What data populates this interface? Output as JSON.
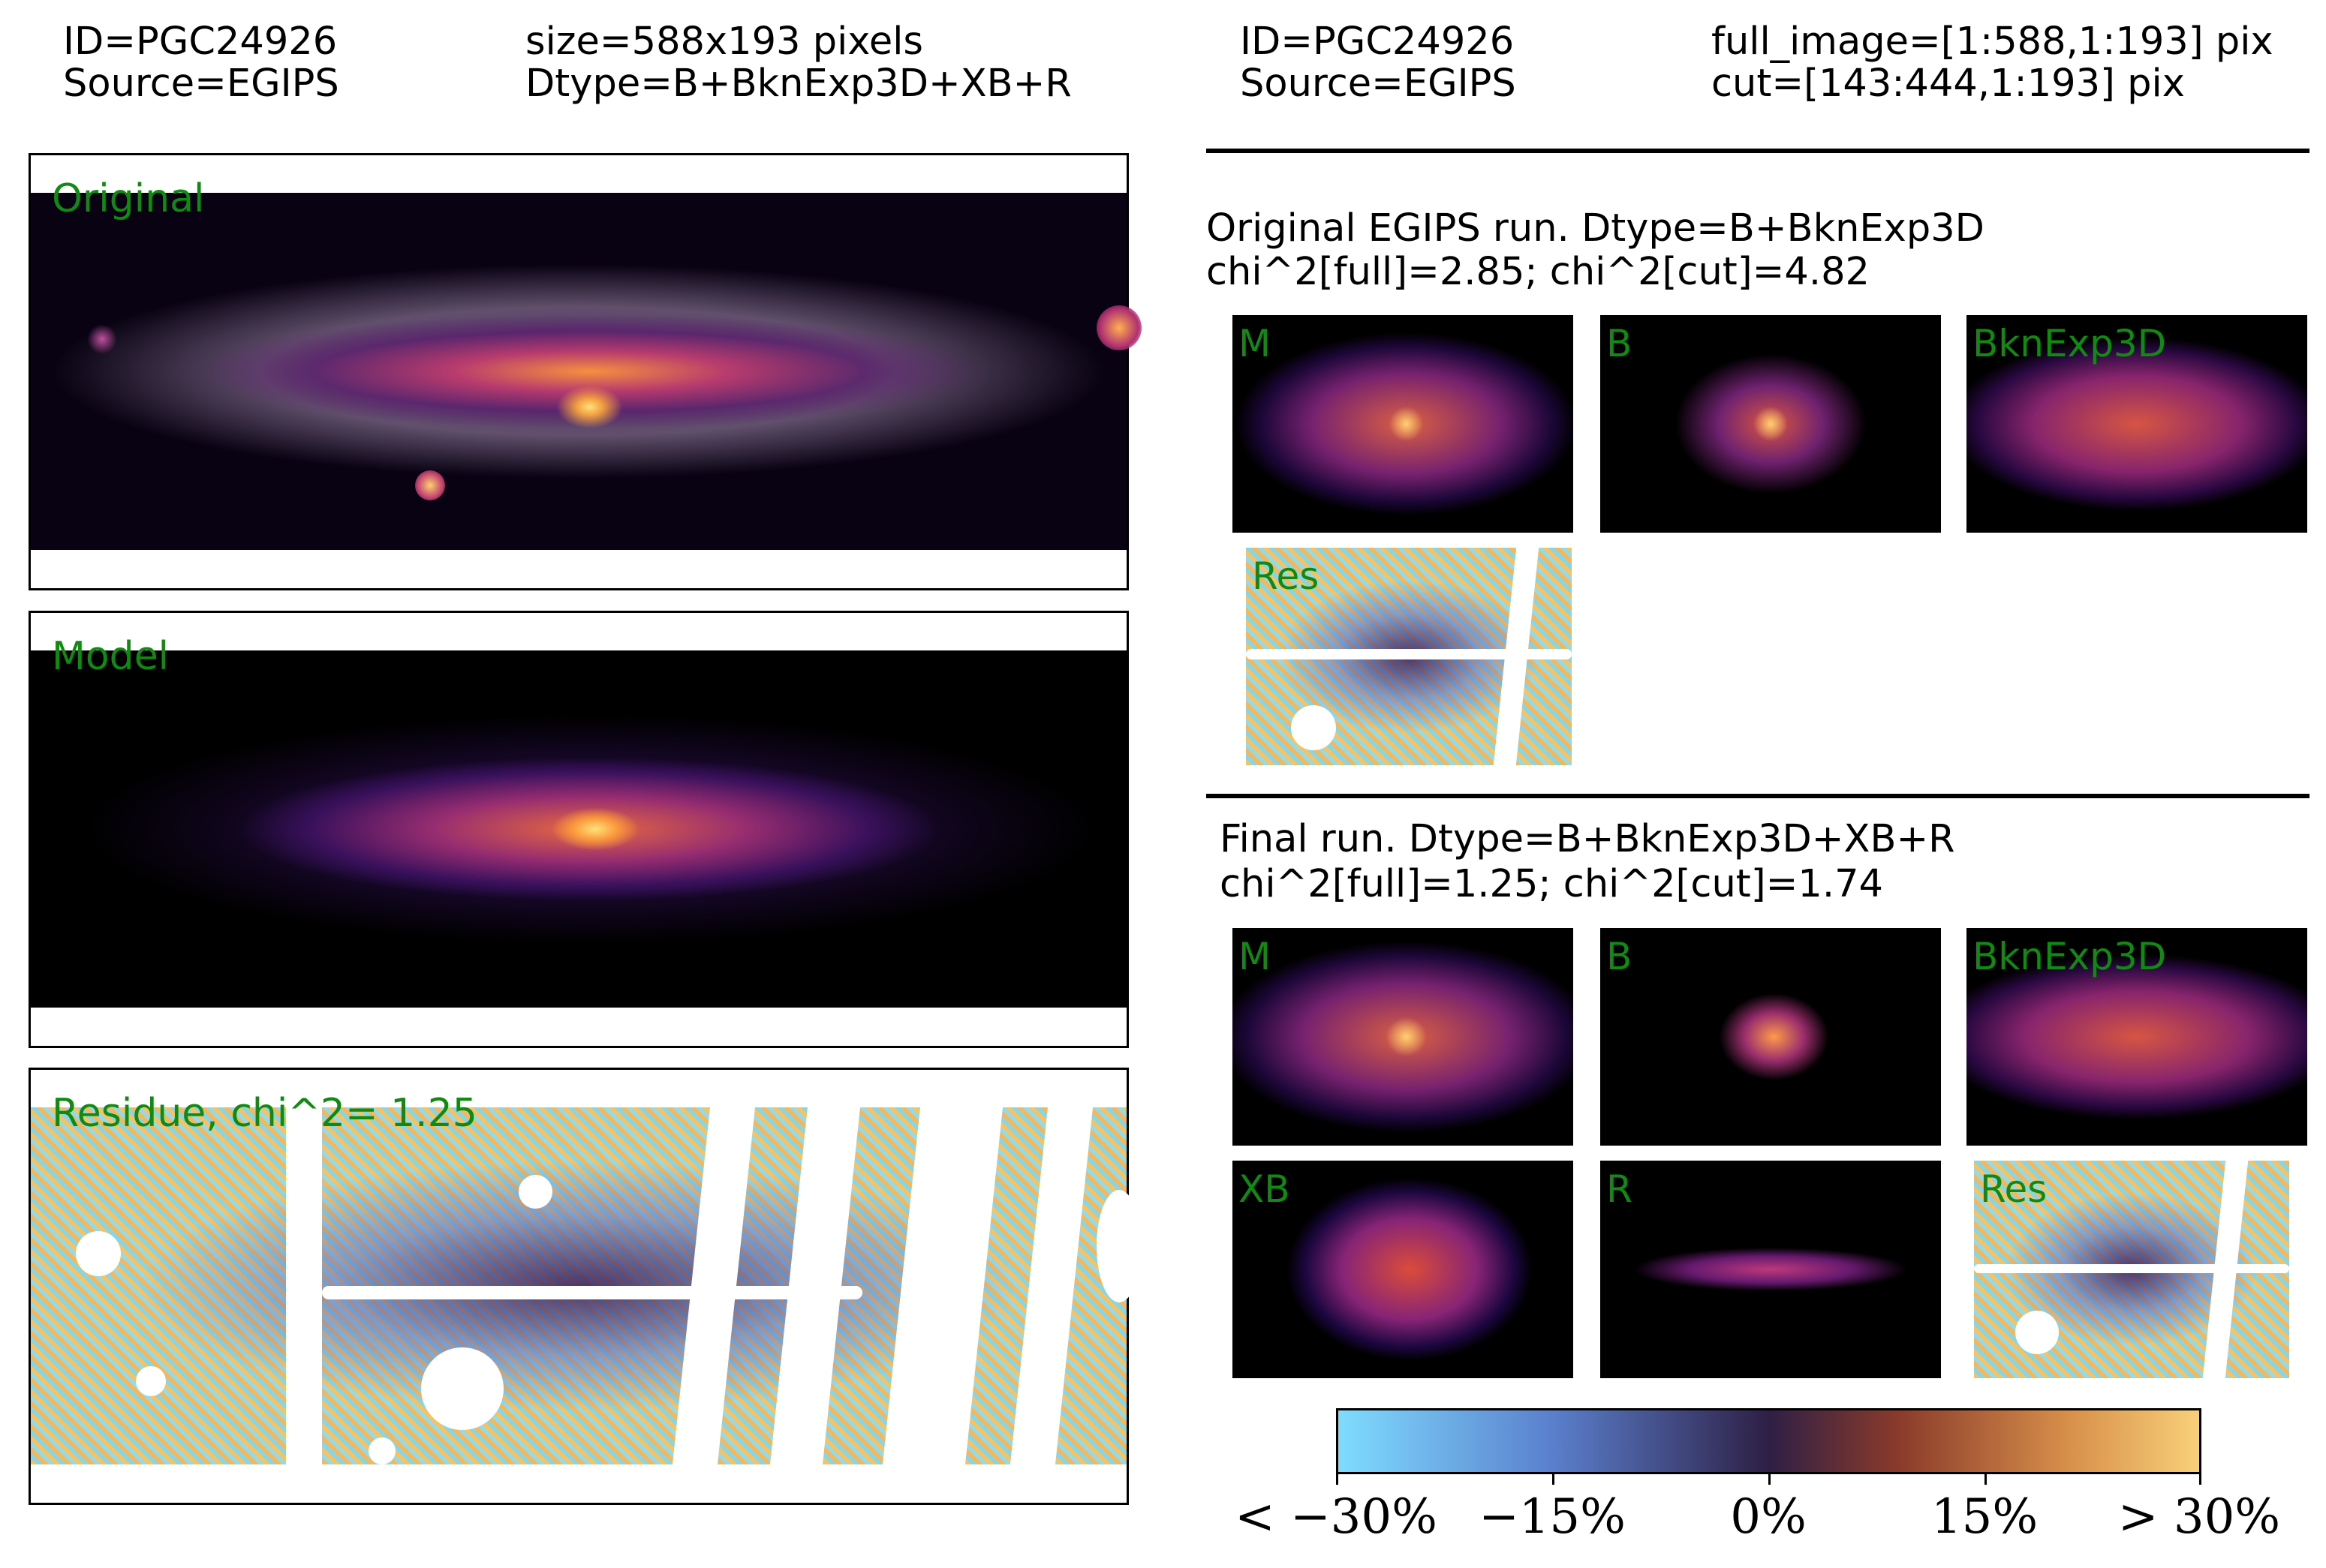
{
  "header_left": {
    "id": "ID=PGC24926",
    "source": "Source=EGIPS",
    "size": "size=588x193 pixels",
    "dtype": "Dtype=B+BknExp3D+XB+R"
  },
  "header_right": {
    "id": "ID=PGC24926",
    "source": "Source=EGIPS",
    "full_image": "full_image=[1:588,1:193] pix",
    "cut": "cut=[143:444,1:193] pix"
  },
  "panels": {
    "original": "Original",
    "model": "Model",
    "residue": "Residue, chi^2=  1.25"
  },
  "original_run": {
    "title": "Original EGIPS run. Dtype=B+BknExp3D",
    "chi": " chi^2[full]=2.85;  chi^2[cut]=4.82",
    "thumbs": [
      "M",
      "B",
      "BknExp3D",
      "Res"
    ]
  },
  "final_run": {
    "title": "Final run. Dtype=B+BknExp3D+XB+R",
    "chi": "chi^2[full]=1.25;  chi^2[cut]=1.74",
    "thumbs": [
      "M",
      "B",
      "BknExp3D",
      "XB",
      "R",
      "Res"
    ]
  },
  "colorbar": {
    "ticks": [
      "< −30%",
      "−15%",
      "0%",
      "15%",
      "> 30%"
    ],
    "colors": [
      "#7fdcff",
      "#5a7fcc",
      "#2e1f45",
      "#8a3a2a",
      "#d8904a",
      "#f8d07a"
    ]
  }
}
